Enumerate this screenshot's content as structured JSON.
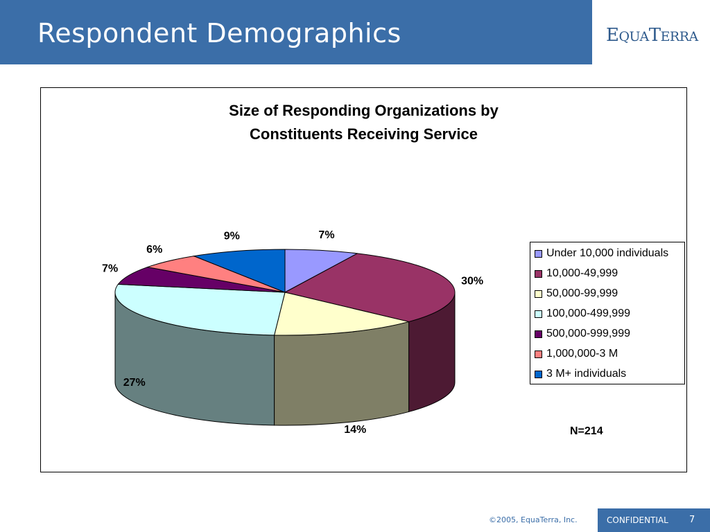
{
  "slide": {
    "title": "Respondent Demographics",
    "logo": {
      "part1": "E",
      "part2": "QUA",
      "part3": "T",
      "part4": "ERRA"
    },
    "footer": {
      "copyright": "©2005, EquaTerra, Inc.",
      "confidential": "CONFIDENTIAL",
      "page": "7"
    }
  },
  "chart_data": {
    "type": "pie",
    "title_lines": [
      "Size of Responding Organizations by",
      "Constituents Receiving Service"
    ],
    "categories": [
      "Under 10,000 individuals",
      "10,000-49,999",
      "50,000-99,999",
      "100,000-499,999",
      "500,000-999,999",
      "1,000,000-3 M",
      "3 M+ individuals"
    ],
    "values": [
      7,
      30,
      14,
      27,
      7,
      6,
      9
    ],
    "labels": [
      "7%",
      "30%",
      "14%",
      "27%",
      "7%",
      "6%",
      "9%"
    ],
    "colors": [
      "#9999ff",
      "#993366",
      "#ffffcc",
      "#ccffff",
      "#660066",
      "#ff8080",
      "#0066cc"
    ],
    "side_colors": [
      "#6b6bb3",
      "#4d1a33",
      "#7f7f66",
      "#668080",
      "#330033",
      "#b35a5a",
      "#004080"
    ],
    "note": "N=214",
    "legend_position": "right"
  }
}
